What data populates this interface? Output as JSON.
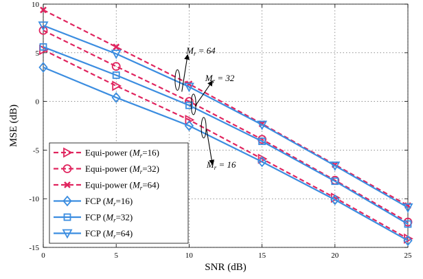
{
  "chart_data": {
    "type": "line",
    "xlabel": "SNR (dB)",
    "ylabel": "MSE (dB)",
    "xlim": [
      0,
      25
    ],
    "ylim": [
      -15,
      10
    ],
    "xticks": [
      0,
      5,
      10,
      15,
      20,
      25
    ],
    "yticks": [
      -15,
      -10,
      -5,
      0,
      5,
      10
    ],
    "grid": "on",
    "legend_position": "bottom-left",
    "colors": {
      "equi": "#e0245e",
      "fcp": "#3b8de0"
    },
    "x": [
      0,
      5,
      10,
      15,
      20,
      25
    ],
    "series": [
      {
        "name": "Equi-power (M_r=16)",
        "label_prefix": "Equi-power (",
        "label_sym": "M",
        "label_sub": "r",
        "label_suffix": "=16)",
        "style": "dashed",
        "marker": "triangle-right",
        "color": "#e0245e",
        "values": [
          5.3,
          1.6,
          -1.9,
          -5.9,
          -9.9,
          -14.1
        ]
      },
      {
        "name": "Equi-power (M_r=32)",
        "label_prefix": "Equi-power (",
        "label_sym": "M",
        "label_sub": "r",
        "label_suffix": "=32)",
        "style": "dashed",
        "marker": "circle",
        "color": "#e0245e",
        "values": [
          7.3,
          3.6,
          0.0,
          -3.9,
          -8.1,
          -12.4
        ]
      },
      {
        "name": "Equi-power (M_r=64)",
        "label_prefix": "Equi-power (",
        "label_sym": "M",
        "label_sub": "r",
        "label_suffix": "=64)",
        "style": "dashed",
        "marker": "x",
        "color": "#e0245e",
        "values": [
          9.4,
          5.6,
          1.8,
          -2.3,
          -6.5,
          -10.7
        ]
      },
      {
        "name": "FCP (M_r=16)",
        "label_prefix": "FCP (",
        "label_sym": "M",
        "label_sub": "r",
        "label_suffix": "=16)",
        "style": "solid",
        "marker": "diamond",
        "color": "#3b8de0",
        "values": [
          3.5,
          0.4,
          -2.5,
          -6.2,
          -10.1,
          -14.3
        ]
      },
      {
        "name": "FCP (M_r=32)",
        "label_prefix": "FCP (",
        "label_sym": "M",
        "label_sub": "r",
        "label_suffix": "=32)",
        "style": "solid",
        "marker": "square",
        "color": "#3b8de0",
        "values": [
          5.6,
          2.7,
          -0.4,
          -4.1,
          -8.2,
          -12.6
        ]
      },
      {
        "name": "FCP (M_r=64)",
        "label_prefix": "FCP (",
        "label_sym": "M",
        "label_sub": "r",
        "label_suffix": "=64)",
        "style": "solid",
        "marker": "triangle-down",
        "color": "#3b8de0",
        "values": [
          7.8,
          4.9,
          1.5,
          -2.4,
          -6.6,
          -10.9
        ]
      }
    ],
    "annotations": [
      {
        "sym": "M",
        "sub": "r",
        "text": " = 64",
        "ellipse_at": [
          9.2,
          2.2
        ],
        "tail_at": [
          9.5,
          1.0
        ],
        "head_at": [
          9.9,
          4.8
        ],
        "text_at": [
          9.8,
          4.9
        ]
      },
      {
        "sym": "M",
        "sub": "r",
        "text": " = 32",
        "ellipse_at": [
          10.3,
          -0.3
        ],
        "tail_at": [
          10.4,
          -0.5
        ],
        "head_at": [
          11.6,
          2.1
        ],
        "text_at": [
          11.1,
          2.1
        ]
      },
      {
        "sym": "M",
        "sub": "r",
        "text": " = 16",
        "ellipse_at": [
          11.0,
          -2.7
        ],
        "tail_at": [
          11.2,
          -2.9
        ],
        "head_at": [
          11.6,
          -6.5
        ],
        "text_at": [
          11.2,
          -6.8
        ]
      }
    ]
  }
}
